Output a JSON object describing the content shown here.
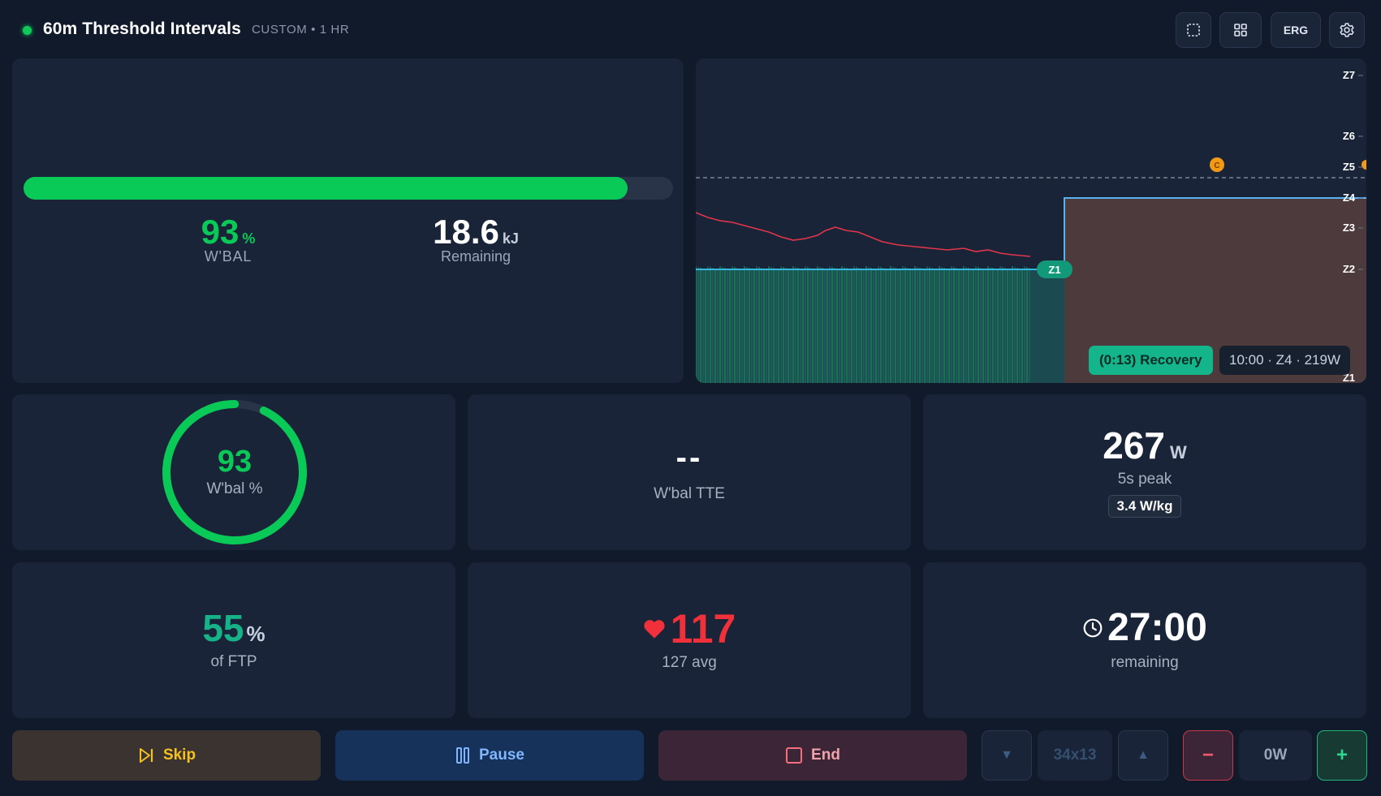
{
  "header": {
    "title": "60m Threshold Intervals",
    "subtitle": "CUSTOM • 1 HR",
    "erg_label": "ERG",
    "icons": [
      "fullscreen-icon",
      "grid-icon",
      "gear-icon"
    ]
  },
  "wbal_bar": {
    "fill_percent": 93,
    "percent_value": "93",
    "percent_unit": "%",
    "percent_label": "W'BAL",
    "remaining_value": "18.6",
    "remaining_unit": "kJ",
    "remaining_label": "Remaining"
  },
  "chart": {
    "zones": [
      "Z7",
      "Z6",
      "Z5",
      "Z4",
      "Z3",
      "Z2",
      "Z1"
    ],
    "current_zone_badge": "Z1",
    "marker_label": "C",
    "recovery_label": "(0:13) Recovery",
    "next_interval_label": "10:00 · Z4 · 219W"
  },
  "ring": {
    "value": "93",
    "label": "W'bal %",
    "fraction": 0.93
  },
  "tte": {
    "value": "--",
    "label": "W'bal TTE"
  },
  "peak": {
    "value": "267",
    "unit": "W",
    "label": "5s peak",
    "badge": "3.4 W/kg"
  },
  "ftp": {
    "value": "55",
    "unit": "%",
    "label": "of FTP"
  },
  "heart": {
    "value": "117",
    "label": "127 avg"
  },
  "timer": {
    "value": "27:00",
    "label": "remaining"
  },
  "controls": {
    "skip_label": "Skip",
    "pause_label": "Pause",
    "end_label": "End",
    "gear_value": "34x13",
    "power_value": "0W",
    "minus_label": "−",
    "plus_label": "+"
  },
  "colors": {
    "background": "#111a2b",
    "card": "#1a2438",
    "green": "#09c957",
    "teal": "#16b389",
    "red": "#f0303a",
    "yellow": "#f5c020",
    "blue": "#7fb6ff"
  }
}
